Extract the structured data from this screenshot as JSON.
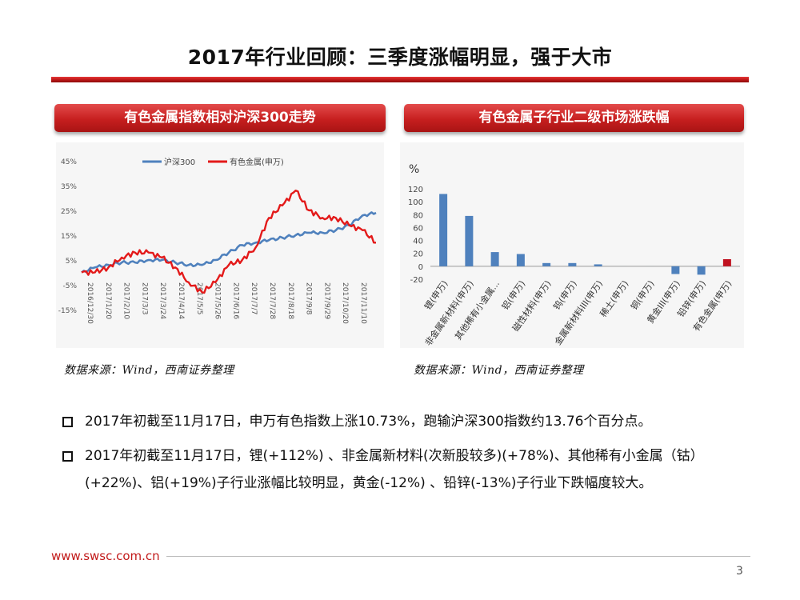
{
  "slide": {
    "title": "2017年行业回顾：三季度涨幅明显，强于大市",
    "page_number": "3",
    "footer_url": "www.swsc.com.cn"
  },
  "left_panel": {
    "heading": "有色金属指数相对沪深300走势",
    "source": "数据来源：Wind，西南证券整理"
  },
  "right_panel": {
    "heading": "有色金属子行业二级市场涨跌幅",
    "source": "数据来源：Wind，西南证券整理"
  },
  "bullets": [
    "2017年初截至11月17日，申万有色指数上涨10.73%，跑输沪深300指数约13.76个百分点。",
    "2017年初截至11月17日，锂(+112%) 、非金属新材料(次新股较多)(+78%)、其他稀有小金属（钴）(+22%)、铝(+19%)子行业涨幅比较明显，黄金(-12%) 、铅锌(-13%)子行业下跌幅度较大。"
  ],
  "chart_data": [
    {
      "type": "line",
      "title": "有色金属指数相对沪深300走势",
      "y_tick_labels": [
        "45%",
        "35%",
        "25%",
        "15%",
        "5%",
        "-5%",
        "-15%"
      ],
      "ylim": [
        -15,
        45
      ],
      "x_tick_labels": [
        "2016/12/30",
        "2017/1/20",
        "2017/2/10",
        "2017/3/3",
        "2017/3/24",
        "2017/4/14",
        "2017/5/5",
        "2017/5/26",
        "2017/6/16",
        "2017/7/7",
        "2017/7/28",
        "2017/8/18",
        "2017/9/8",
        "2017/9/29",
        "2017/10/20",
        "2017/11/10"
      ],
      "legend_position": "top-center",
      "series": [
        {
          "name": "沪深300",
          "color": "#4f81bd",
          "values": [
            0,
            2,
            3,
            4,
            4,
            5,
            5,
            4,
            3,
            3,
            5,
            8,
            11,
            12,
            13,
            14,
            15,
            16,
            16,
            17,
            19,
            23,
            24
          ]
        },
        {
          "name": "有色金属(申万)",
          "color": "#e31a1a",
          "values": [
            0,
            0,
            2,
            6,
            8,
            8,
            6,
            2,
            -4,
            -8,
            -4,
            3,
            5,
            10,
            22,
            27,
            33,
            25,
            22,
            22,
            19,
            17,
            12
          ]
        }
      ]
    },
    {
      "type": "bar",
      "title": "有色金属子行业二级市场涨跌幅",
      "ylabel": "%",
      "ylim": [
        -20,
        120
      ],
      "y_tick_labels": [
        "120",
        "100",
        "80",
        "60",
        "40",
        "20",
        "0",
        "-20"
      ],
      "categories": [
        "锂(申万)",
        "非金属新材料(申万)",
        "其他稀有小金属...",
        "铝(申万)",
        "磁性材料(申万)",
        "钨(申万)",
        "金属新材料III(申万)",
        "稀土(申万)",
        "铜(申万)",
        "黄金III(申万)",
        "铅锌(申万)",
        "有色金属(申万)"
      ],
      "values": [
        112,
        78,
        22,
        19,
        5,
        5,
        3,
        0,
        0,
        -12,
        -13,
        11
      ],
      "colors": [
        "#4f81bd",
        "#4f81bd",
        "#4f81bd",
        "#4f81bd",
        "#4f81bd",
        "#4f81bd",
        "#4f81bd",
        "#4f81bd",
        "#4f81bd",
        "#4f81bd",
        "#4f81bd",
        "#c0111f"
      ]
    }
  ]
}
